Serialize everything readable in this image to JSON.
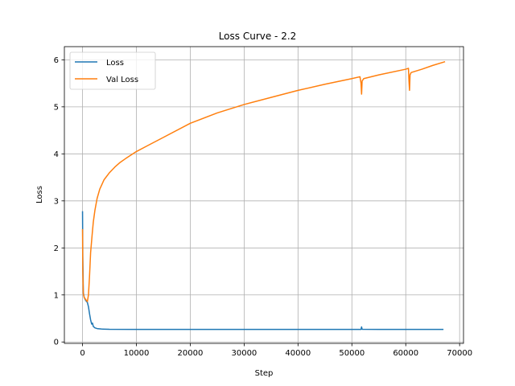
{
  "chart_data": {
    "type": "line",
    "title": "Loss Curve - 2.2",
    "xlabel": "Step",
    "ylabel": "Loss",
    "xlim": [
      -3370,
      70720
    ],
    "ylim": [
      -0.03,
      6.28
    ],
    "x_ticks": [
      0,
      10000,
      20000,
      30000,
      40000,
      50000,
      60000,
      70000
    ],
    "y_ticks": [
      0,
      1,
      2,
      3,
      4,
      5,
      6
    ],
    "grid": true,
    "legend_position": "top-left",
    "series": [
      {
        "name": "Loss",
        "color": "#1f77b4",
        "points": [
          [
            0,
            2.78
          ],
          [
            50,
            1.8
          ],
          [
            150,
            1.05
          ],
          [
            300,
            0.95
          ],
          [
            600,
            0.88
          ],
          [
            900,
            0.84
          ],
          [
            1100,
            0.75
          ],
          [
            1300,
            0.6
          ],
          [
            1500,
            0.47
          ],
          [
            1700,
            0.38
          ],
          [
            1850,
            0.4
          ],
          [
            2000,
            0.33
          ],
          [
            2300,
            0.3
          ],
          [
            2700,
            0.285
          ],
          [
            3500,
            0.275
          ],
          [
            5000,
            0.27
          ],
          [
            10000,
            0.268
          ],
          [
            20000,
            0.268
          ],
          [
            30000,
            0.268
          ],
          [
            40000,
            0.268
          ],
          [
            50000,
            0.268
          ],
          [
            51700,
            0.268
          ],
          [
            51800,
            0.32
          ],
          [
            51900,
            0.27
          ],
          [
            55000,
            0.268
          ],
          [
            60000,
            0.268
          ],
          [
            67000,
            0.268
          ]
        ]
      },
      {
        "name": "Val Loss",
        "color": "#ff7f0e",
        "points": [
          [
            0,
            2.4
          ],
          [
            50,
            1.5
          ],
          [
            150,
            1.02
          ],
          [
            300,
            0.95
          ],
          [
            600,
            0.9
          ],
          [
            900,
            0.86
          ],
          [
            1100,
            1.0
          ],
          [
            1300,
            1.4
          ],
          [
            1500,
            1.9
          ],
          [
            1800,
            2.3
          ],
          [
            2000,
            2.55
          ],
          [
            2300,
            2.8
          ],
          [
            2700,
            3.05
          ],
          [
            3200,
            3.25
          ],
          [
            4000,
            3.45
          ],
          [
            5000,
            3.6
          ],
          [
            6000,
            3.72
          ],
          [
            7000,
            3.82
          ],
          [
            8000,
            3.9
          ],
          [
            10000,
            4.05
          ],
          [
            12000,
            4.17
          ],
          [
            15000,
            4.35
          ],
          [
            20000,
            4.65
          ],
          [
            25000,
            4.87
          ],
          [
            30000,
            5.05
          ],
          [
            35000,
            5.2
          ],
          [
            40000,
            5.35
          ],
          [
            45000,
            5.48
          ],
          [
            50000,
            5.6
          ],
          [
            51500,
            5.64
          ],
          [
            51700,
            5.5
          ],
          [
            51800,
            5.27
          ],
          [
            51900,
            5.55
          ],
          [
            52200,
            5.6
          ],
          [
            55000,
            5.68
          ],
          [
            60000,
            5.8
          ],
          [
            60500,
            5.82
          ],
          [
            60600,
            5.55
          ],
          [
            60700,
            5.35
          ],
          [
            60800,
            5.68
          ],
          [
            61000,
            5.73
          ],
          [
            63000,
            5.8
          ],
          [
            65000,
            5.88
          ],
          [
            67300,
            5.96
          ]
        ]
      }
    ]
  }
}
